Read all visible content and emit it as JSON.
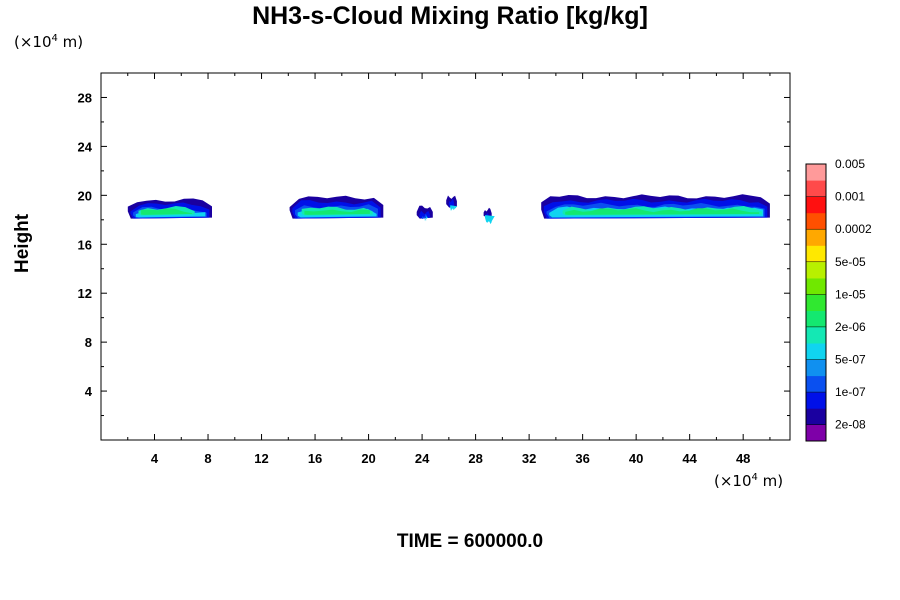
{
  "chart_data": {
    "type": "contour",
    "title": "NH3-s-Cloud Mixing Ratio [kg/kg]",
    "ylabel": "Height",
    "x_unit": "(×10",
    "y_unit": "(×10",
    "unit_exp": "4",
    "unit_m": " m)",
    "x_ticks": [
      "4",
      "8",
      "12",
      "16",
      "20",
      "24",
      "28",
      "32",
      "36",
      "40",
      "44",
      "48"
    ],
    "y_ticks": [
      "4",
      "8",
      "12",
      "16",
      "20",
      "24",
      "28"
    ],
    "xlim": [
      0,
      51.5
    ],
    "ylim": [
      0,
      30
    ],
    "footer": "TIME = 600000.0",
    "colorbar": {
      "colors": [
        "#7e00a8",
        "#1a00a0",
        "#0010e8",
        "#0a50f0",
        "#1090f0",
        "#10d4f0",
        "#14e8b4",
        "#14e870",
        "#30e830",
        "#70e800",
        "#b8f000",
        "#ffe800",
        "#ffa800",
        "#ff5000",
        "#ff1010",
        "#ff4a4a",
        "#ff9a9a"
      ],
      "labels": [
        "2e-08",
        "1e-07",
        "5e-07",
        "2e-06",
        "1e-05",
        "5e-05",
        "0.0002",
        "0.001",
        "0.005"
      ]
    },
    "clouds": [
      {
        "x0": 2.0,
        "x1": 8.3,
        "base": 18.1,
        "top": 19.6,
        "core": [
          2.8,
          7.0
        ]
      },
      {
        "x0": 14.1,
        "x1": 21.1,
        "base": 18.1,
        "top": 19.8,
        "core": [
          15.0,
          20.3
        ]
      },
      {
        "x0": 23.6,
        "x1": 24.8,
        "base": 18.1,
        "top": 19.0,
        "core": null
      },
      {
        "x0": 25.8,
        "x1": 26.6,
        "base": 19.0,
        "top": 19.9,
        "core": null
      },
      {
        "x0": 28.6,
        "x1": 29.2,
        "base": 18.2,
        "top": 18.8,
        "core": null
      },
      {
        "x0": 32.9,
        "x1": 50.0,
        "base": 18.1,
        "top": 19.9,
        "core": [
          34.5,
          49.4
        ]
      }
    ],
    "grid": false,
    "legend": "colorbar-right"
  }
}
